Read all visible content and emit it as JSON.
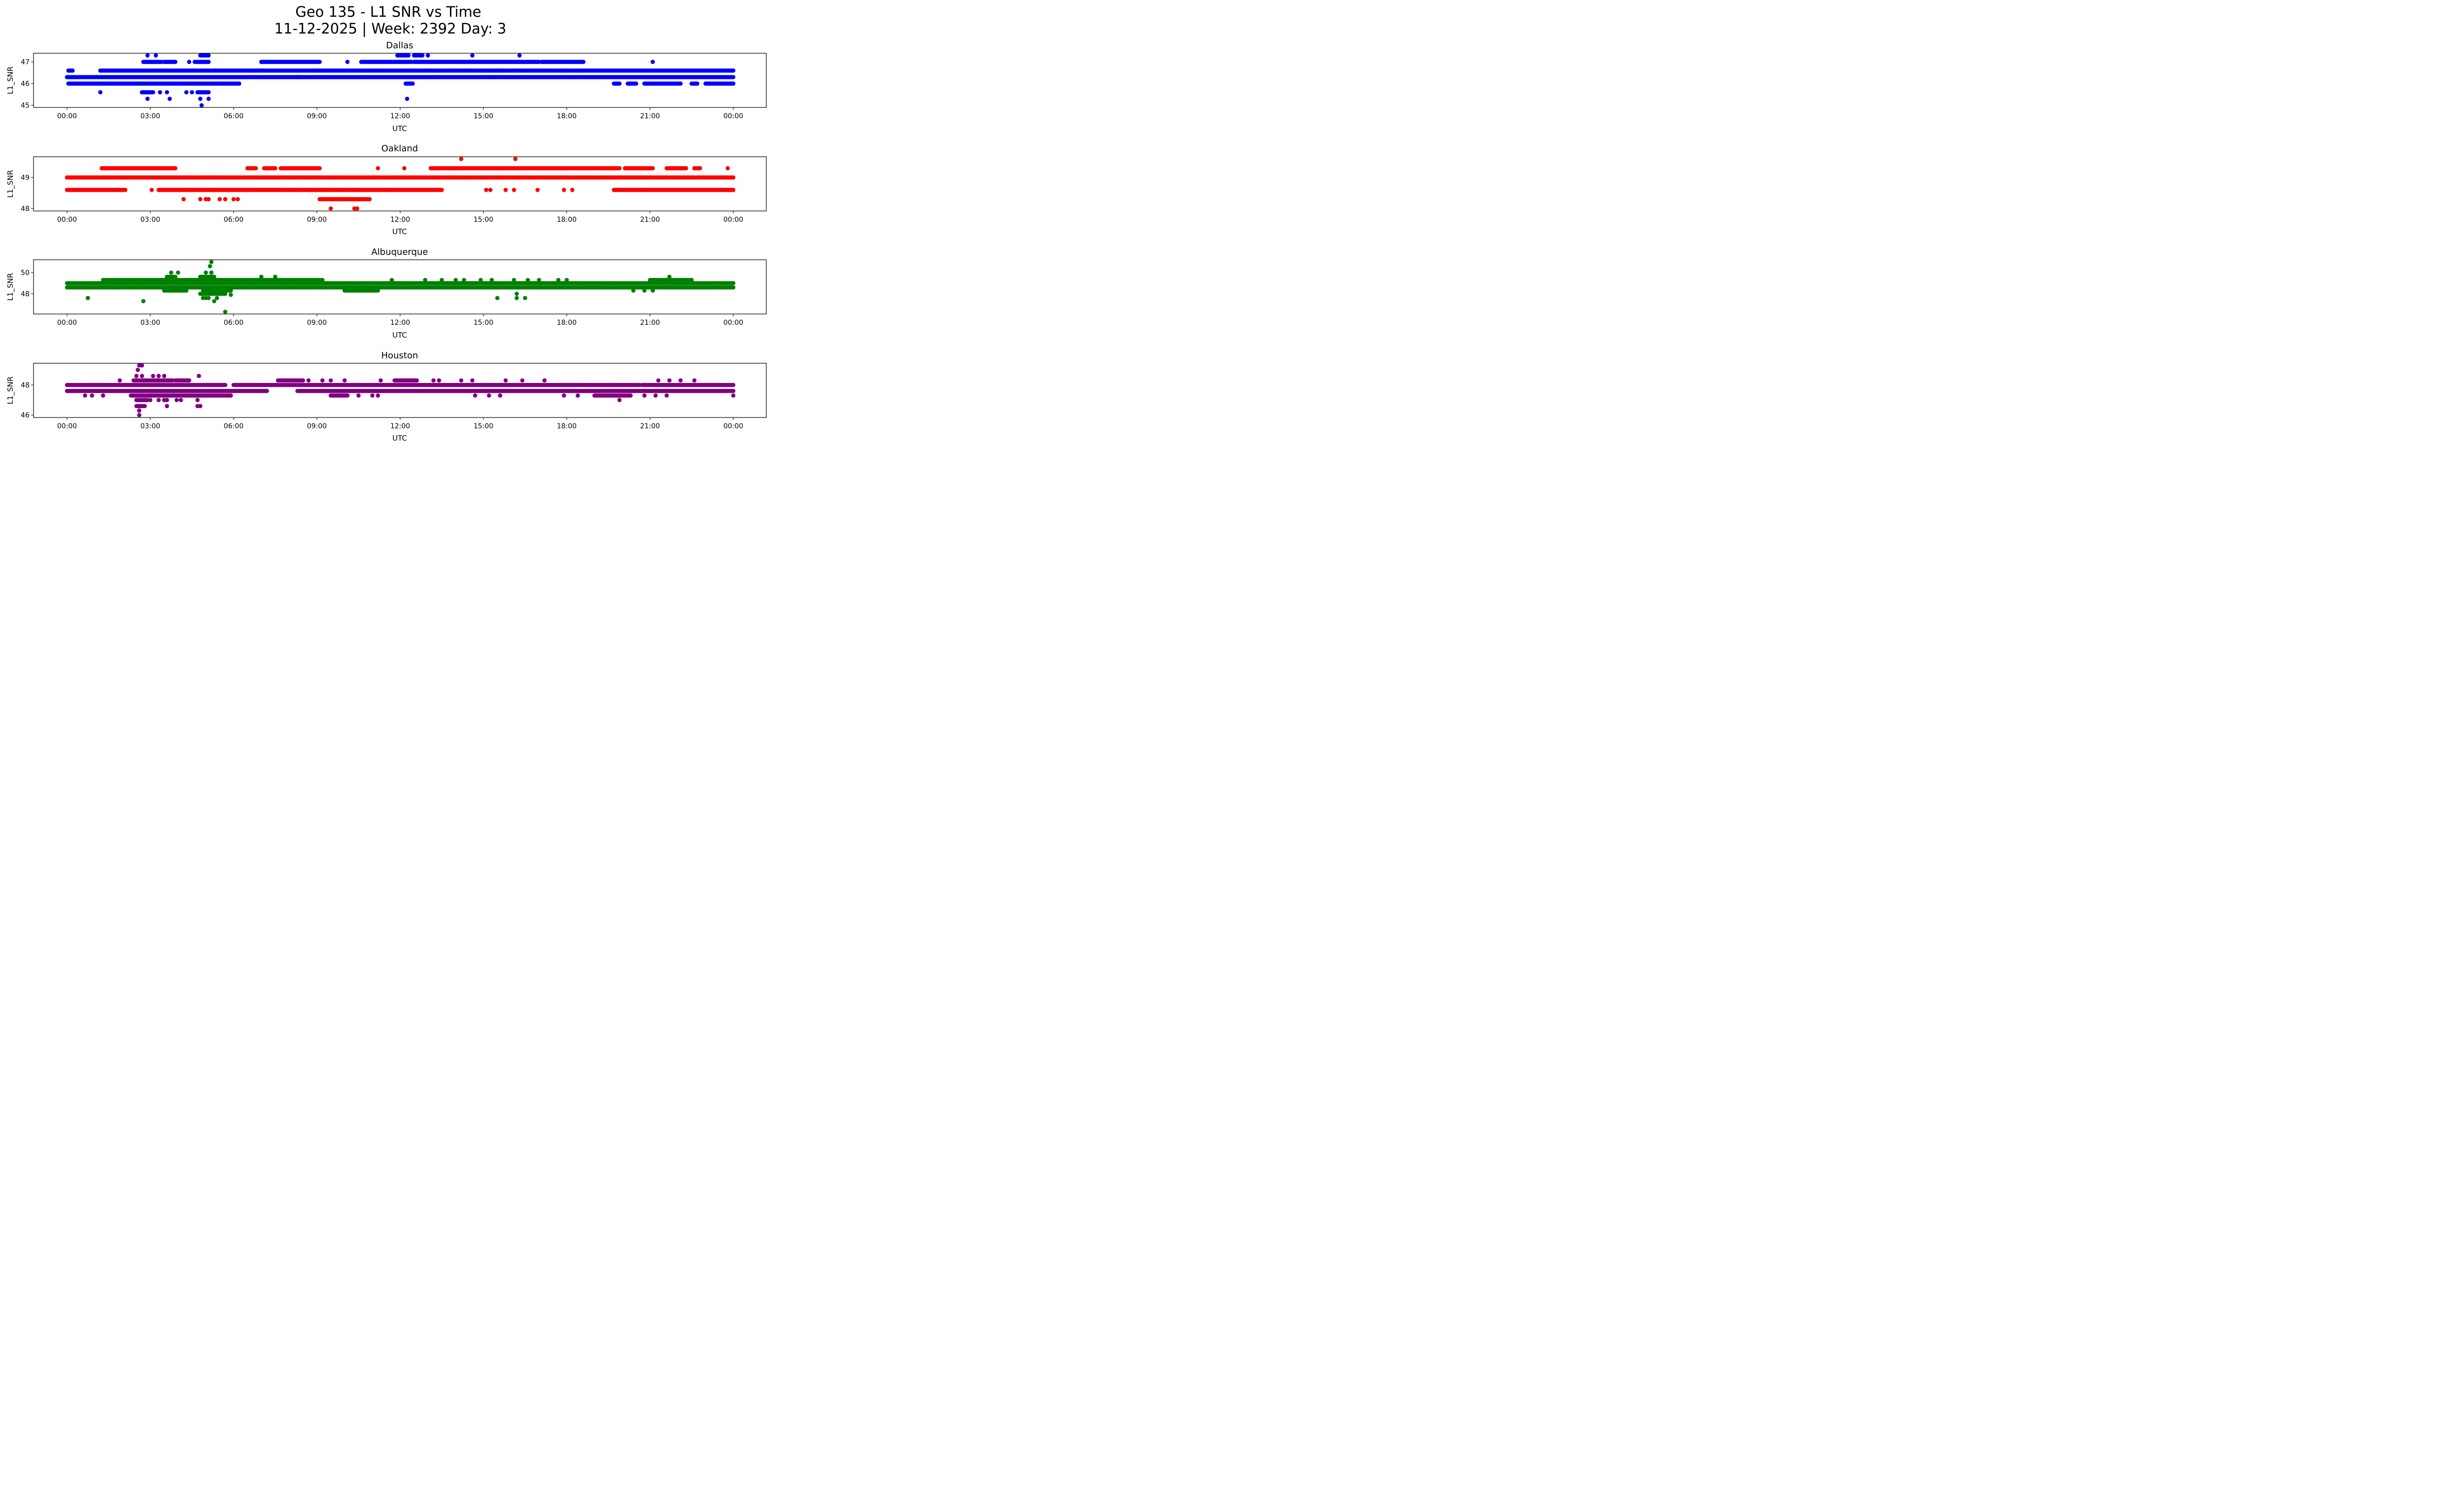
{
  "figure": {
    "title_line1": "Geo 135 - L1 SNR vs Time",
    "title_line2": "11-12-2025 | Week: 2392 Day: 3"
  },
  "chart_data": [
    {
      "type": "scatter",
      "title": "Dallas",
      "xlabel": "UTC",
      "ylabel": "L1_SNR",
      "color": "#0000ff",
      "xlim_hours": [
        -1.2,
        25.2
      ],
      "x_ticks": [
        "00:00",
        "03:00",
        "06:00",
        "09:00",
        "12:00",
        "15:00",
        "18:00",
        "21:00",
        "00:00"
      ],
      "ylim": [
        44.9,
        47.4
      ],
      "y_ticks": [
        45,
        46,
        47
      ],
      "runs": [
        {
          "snr": 46.3,
          "from": 0.0,
          "to": 24.0
        },
        {
          "snr": 46.0,
          "from": 0.05,
          "to": 6.2
        },
        {
          "snr": 46.0,
          "from": 12.2,
          "to": 12.45
        },
        {
          "snr": 46.0,
          "from": 19.7,
          "to": 19.9
        },
        {
          "snr": 46.0,
          "from": 20.2,
          "to": 20.5
        },
        {
          "snr": 46.0,
          "from": 20.8,
          "to": 22.1
        },
        {
          "snr": 46.0,
          "from": 22.5,
          "to": 22.7
        },
        {
          "snr": 46.0,
          "from": 23.0,
          "to": 24.0
        },
        {
          "snr": 46.6,
          "from": 0.05,
          "to": 0.2
        },
        {
          "snr": 46.6,
          "from": 1.2,
          "to": 24.0
        },
        {
          "snr": 46.3,
          "from": 8.3,
          "to": 8.35
        },
        {
          "snr": 47.0,
          "from": 2.75,
          "to": 3.4
        },
        {
          "snr": 47.0,
          "from": 3.5,
          "to": 3.9
        },
        {
          "snr": 47.0,
          "from": 4.6,
          "to": 5.1
        },
        {
          "snr": 47.0,
          "from": 7.0,
          "to": 9.1
        },
        {
          "snr": 47.0,
          "from": 10.6,
          "to": 12.4
        },
        {
          "snr": 47.0,
          "from": 12.5,
          "to": 17.0
        },
        {
          "snr": 47.0,
          "from": 17.1,
          "to": 18.6
        },
        {
          "snr": 45.6,
          "from": 2.7,
          "to": 3.1
        },
        {
          "snr": 45.6,
          "from": 4.7,
          "to": 5.1
        },
        {
          "snr": 47.3,
          "from": 11.9,
          "to": 12.3
        },
        {
          "snr": 47.3,
          "from": 12.5,
          "to": 12.8
        },
        {
          "snr": 47.3,
          "from": 4.8,
          "to": 5.1
        }
      ],
      "points": [
        {
          "t": 1.2,
          "snr": 45.6
        },
        {
          "t": 3.35,
          "snr": 45.6
        },
        {
          "t": 3.6,
          "snr": 45.6
        },
        {
          "t": 4.3,
          "snr": 45.6
        },
        {
          "t": 4.5,
          "snr": 45.6
        },
        {
          "t": 2.9,
          "snr": 45.3
        },
        {
          "t": 3.7,
          "snr": 45.3
        },
        {
          "t": 4.8,
          "snr": 45.3
        },
        {
          "t": 5.1,
          "snr": 45.3
        },
        {
          "t": 12.25,
          "snr": 45.3
        },
        {
          "t": 4.85,
          "snr": 45.0
        },
        {
          "t": 2.9,
          "snr": 47.3
        },
        {
          "t": 3.2,
          "snr": 47.3
        },
        {
          "t": 13.0,
          "snr": 47.3
        },
        {
          "t": 14.6,
          "snr": 47.3
        },
        {
          "t": 16.3,
          "snr": 47.3
        },
        {
          "t": 4.4,
          "snr": 47.0
        },
        {
          "t": 10.1,
          "snr": 47.0
        },
        {
          "t": 21.1,
          "snr": 47.0
        },
        {
          "t": 15.25,
          "snr": 46.3
        },
        {
          "t": 16.6,
          "snr": 46.3
        }
      ]
    },
    {
      "type": "scatter",
      "title": "Oakland",
      "xlabel": "UTC",
      "ylabel": "L1_SNR",
      "color": "#ff0000",
      "xlim_hours": [
        -1.2,
        25.2
      ],
      "x_ticks": [
        "00:00",
        "03:00",
        "06:00",
        "09:00",
        "12:00",
        "15:00",
        "18:00",
        "21:00",
        "00:00"
      ],
      "ylim": [
        47.92,
        49.67
      ],
      "y_ticks": [
        48,
        49
      ],
      "runs": [
        {
          "snr": 49.0,
          "from": 0.0,
          "to": 24.0
        },
        {
          "snr": 48.6,
          "from": 0.0,
          "to": 2.1
        },
        {
          "snr": 48.6,
          "from": 3.3,
          "to": 13.5
        },
        {
          "snr": 48.6,
          "from": 19.7,
          "to": 24.0
        },
        {
          "snr": 49.3,
          "from": 1.25,
          "to": 3.9
        },
        {
          "snr": 49.3,
          "from": 6.5,
          "to": 6.8
        },
        {
          "snr": 49.3,
          "from": 7.1,
          "to": 7.5
        },
        {
          "snr": 49.3,
          "from": 7.7,
          "to": 9.1
        },
        {
          "snr": 49.3,
          "from": 13.1,
          "to": 19.9
        },
        {
          "snr": 49.3,
          "from": 20.1,
          "to": 21.1
        },
        {
          "snr": 49.3,
          "from": 21.6,
          "to": 22.3
        },
        {
          "snr": 49.3,
          "from": 22.6,
          "to": 22.8
        },
        {
          "snr": 48.3,
          "from": 9.1,
          "to": 10.9
        }
      ],
      "points": [
        {
          "t": 3.05,
          "snr": 48.6
        },
        {
          "t": 15.1,
          "snr": 48.6
        },
        {
          "t": 15.25,
          "snr": 48.6
        },
        {
          "t": 15.8,
          "snr": 48.6
        },
        {
          "t": 16.1,
          "snr": 48.6
        },
        {
          "t": 16.95,
          "snr": 48.6
        },
        {
          "t": 17.9,
          "snr": 48.6
        },
        {
          "t": 18.2,
          "snr": 48.6
        },
        {
          "t": 4.2,
          "snr": 48.3
        },
        {
          "t": 4.8,
          "snr": 48.3
        },
        {
          "t": 5.0,
          "snr": 48.3
        },
        {
          "t": 5.1,
          "snr": 48.3
        },
        {
          "t": 5.5,
          "snr": 48.3
        },
        {
          "t": 5.7,
          "snr": 48.3
        },
        {
          "t": 6.0,
          "snr": 48.3
        },
        {
          "t": 6.15,
          "snr": 48.3
        },
        {
          "t": 9.5,
          "snr": 48.0
        },
        {
          "t": 10.35,
          "snr": 48.0
        },
        {
          "t": 10.45,
          "snr": 48.0
        },
        {
          "t": 11.2,
          "snr": 49.3
        },
        {
          "t": 12.15,
          "snr": 49.3
        },
        {
          "t": 23.8,
          "snr": 49.3
        },
        {
          "t": 14.2,
          "snr": 49.6
        },
        {
          "t": 16.15,
          "snr": 49.6
        },
        {
          "t": 9.6,
          "snr": 49.0
        }
      ]
    },
    {
      "type": "scatter",
      "title": "Albuquerque",
      "xlabel": "UTC",
      "ylabel": "L1_SNR",
      "color": "#008000",
      "xlim_hours": [
        -1.2,
        25.2
      ],
      "x_ticks": [
        "00:00",
        "03:00",
        "06:00",
        "09:00",
        "12:00",
        "15:00",
        "18:00",
        "21:00",
        "00:00"
      ],
      "ylim": [
        46.09,
        51.21
      ],
      "y_ticks": [
        48,
        50
      ],
      "runs": [
        {
          "snr": 49.0,
          "from": 0.0,
          "to": 24.0
        },
        {
          "snr": 48.6,
          "from": 0.0,
          "to": 24.0
        },
        {
          "snr": 49.3,
          "from": 1.3,
          "to": 9.2
        },
        {
          "snr": 49.3,
          "from": 21.0,
          "to": 22.5
        },
        {
          "snr": 48.3,
          "from": 3.5,
          "to": 4.3
        },
        {
          "snr": 48.3,
          "from": 4.9,
          "to": 5.9
        },
        {
          "snr": 48.3,
          "from": 10.0,
          "to": 11.2
        },
        {
          "snr": 48.0,
          "from": 4.8,
          "to": 5.7
        },
        {
          "snr": 49.6,
          "from": 3.6,
          "to": 3.9
        },
        {
          "snr": 49.6,
          "from": 4.8,
          "to": 5.3
        }
      ],
      "points": [
        {
          "t": 0.75,
          "snr": 47.6
        },
        {
          "t": 2.75,
          "snr": 47.3
        },
        {
          "t": 5.7,
          "snr": 46.3
        },
        {
          "t": 4.9,
          "snr": 47.6
        },
        {
          "t": 5.1,
          "snr": 47.6
        },
        {
          "t": 5.4,
          "snr": 47.6
        },
        {
          "t": 5.3,
          "snr": 47.3
        },
        {
          "t": 5.0,
          "snr": 47.6
        },
        {
          "t": 5.9,
          "snr": 47.9
        },
        {
          "t": 3.75,
          "snr": 50.0
        },
        {
          "t": 4.0,
          "snr": 50.0
        },
        {
          "t": 5.0,
          "snr": 50.0
        },
        {
          "t": 5.2,
          "snr": 50.0
        },
        {
          "t": 5.15,
          "snr": 50.6
        },
        {
          "t": 5.2,
          "snr": 51.0
        },
        {
          "t": 2.75,
          "snr": 48.6
        },
        {
          "t": 1.9,
          "snr": 48.6
        },
        {
          "t": 7.0,
          "snr": 49.6
        },
        {
          "t": 7.5,
          "snr": 49.6
        },
        {
          "t": 11.7,
          "snr": 49.3
        },
        {
          "t": 12.9,
          "snr": 49.3
        },
        {
          "t": 13.5,
          "snr": 49.3
        },
        {
          "t": 14.0,
          "snr": 49.3
        },
        {
          "t": 14.3,
          "snr": 49.3
        },
        {
          "t": 14.9,
          "snr": 49.3
        },
        {
          "t": 15.3,
          "snr": 49.3
        },
        {
          "t": 16.1,
          "snr": 49.3
        },
        {
          "t": 16.6,
          "snr": 49.3
        },
        {
          "t": 17.0,
          "snr": 49.3
        },
        {
          "t": 17.7,
          "snr": 49.3
        },
        {
          "t": 18.0,
          "snr": 49.3
        },
        {
          "t": 15.5,
          "snr": 47.6
        },
        {
          "t": 16.2,
          "snr": 48.0
        },
        {
          "t": 16.2,
          "snr": 47.6
        },
        {
          "t": 16.5,
          "snr": 47.6
        },
        {
          "t": 21.7,
          "snr": 49.6
        },
        {
          "t": 20.4,
          "snr": 48.3
        },
        {
          "t": 20.8,
          "snr": 48.3
        },
        {
          "t": 21.1,
          "snr": 48.3
        }
      ]
    },
    {
      "type": "scatter",
      "title": "Houston",
      "xlabel": "UTC",
      "ylabel": "L1_SNR",
      "color": "#800080",
      "xlim_hours": [
        -1.2,
        25.2
      ],
      "x_ticks": [
        "00:00",
        "03:00",
        "06:00",
        "09:00",
        "12:00",
        "15:00",
        "18:00",
        "21:00",
        "00:00"
      ],
      "ylim": [
        45.84,
        49.44
      ],
      "y_ticks": [
        46,
        48
      ],
      "runs": [
        {
          "snr": 48.0,
          "from": 0.0,
          "to": 5.7
        },
        {
          "snr": 48.0,
          "from": 6.0,
          "to": 20.6
        },
        {
          "snr": 48.0,
          "from": 20.7,
          "to": 24.0
        },
        {
          "snr": 47.6,
          "from": 0.0,
          "to": 7.2
        },
        {
          "snr": 47.6,
          "from": 8.3,
          "to": 24.0
        },
        {
          "snr": 48.3,
          "from": 7.6,
          "to": 8.5
        },
        {
          "snr": 48.3,
          "from": 2.4,
          "to": 3.8
        },
        {
          "snr": 48.3,
          "from": 3.9,
          "to": 4.4
        },
        {
          "snr": 48.3,
          "from": 11.8,
          "to": 12.6
        },
        {
          "snr": 47.3,
          "from": 2.3,
          "to": 5.9
        },
        {
          "snr": 47.3,
          "from": 9.5,
          "to": 10.1
        },
        {
          "snr": 47.3,
          "from": 19.0,
          "to": 20.3
        },
        {
          "snr": 47.0,
          "from": 2.5,
          "to": 2.9
        },
        {
          "snr": 46.6,
          "from": 2.5,
          "to": 2.8
        }
      ],
      "points": [
        {
          "t": 0.65,
          "snr": 47.3
        },
        {
          "t": 0.9,
          "snr": 47.3
        },
        {
          "t": 1.3,
          "snr": 47.3
        },
        {
          "t": 2.6,
          "snr": 49.3
        },
        {
          "t": 2.7,
          "snr": 49.3
        },
        {
          "t": 2.55,
          "snr": 49.0
        },
        {
          "t": 2.5,
          "snr": 48.6
        },
        {
          "t": 2.7,
          "snr": 48.6
        },
        {
          "t": 3.1,
          "snr": 48.6
        },
        {
          "t": 3.3,
          "snr": 48.6
        },
        {
          "t": 3.5,
          "snr": 48.6
        },
        {
          "t": 4.75,
          "snr": 48.6
        },
        {
          "t": 2.6,
          "snr": 46.3
        },
        {
          "t": 2.6,
          "snr": 46.0
        },
        {
          "t": 3.0,
          "snr": 47.0
        },
        {
          "t": 3.3,
          "snr": 47.0
        },
        {
          "t": 3.5,
          "snr": 47.0
        },
        {
          "t": 3.6,
          "snr": 47.0
        },
        {
          "t": 3.95,
          "snr": 47.0
        },
        {
          "t": 4.1,
          "snr": 47.0
        },
        {
          "t": 4.7,
          "snr": 47.0
        },
        {
          "t": 3.6,
          "snr": 46.6
        },
        {
          "t": 4.7,
          "snr": 46.6
        },
        {
          "t": 4.8,
          "snr": 46.6
        },
        {
          "t": 1.9,
          "snr": 48.3
        },
        {
          "t": 8.7,
          "snr": 48.3
        },
        {
          "t": 9.2,
          "snr": 48.3
        },
        {
          "t": 9.5,
          "snr": 48.3
        },
        {
          "t": 10.0,
          "snr": 48.3
        },
        {
          "t": 11.3,
          "snr": 48.3
        },
        {
          "t": 13.2,
          "snr": 48.3
        },
        {
          "t": 13.4,
          "snr": 48.3
        },
        {
          "t": 14.2,
          "snr": 48.3
        },
        {
          "t": 14.6,
          "snr": 48.3
        },
        {
          "t": 15.8,
          "snr": 48.3
        },
        {
          "t": 16.4,
          "snr": 48.3
        },
        {
          "t": 17.2,
          "snr": 48.3
        },
        {
          "t": 21.3,
          "snr": 48.3
        },
        {
          "t": 21.7,
          "snr": 48.3
        },
        {
          "t": 22.1,
          "snr": 48.3
        },
        {
          "t": 22.6,
          "snr": 48.3
        },
        {
          "t": 10.5,
          "snr": 47.3
        },
        {
          "t": 11.0,
          "snr": 47.3
        },
        {
          "t": 11.2,
          "snr": 47.3
        },
        {
          "t": 14.7,
          "snr": 47.3
        },
        {
          "t": 15.2,
          "snr": 47.3
        },
        {
          "t": 15.6,
          "snr": 47.3
        },
        {
          "t": 17.9,
          "snr": 47.3
        },
        {
          "t": 18.4,
          "snr": 47.3
        },
        {
          "t": 20.8,
          "snr": 47.3
        },
        {
          "t": 21.2,
          "snr": 47.3
        },
        {
          "t": 21.6,
          "snr": 47.3
        },
        {
          "t": 24.0,
          "snr": 47.3
        },
        {
          "t": 19.9,
          "snr": 47.0
        },
        {
          "t": 19.9,
          "snr": 48.0
        }
      ]
    }
  ]
}
